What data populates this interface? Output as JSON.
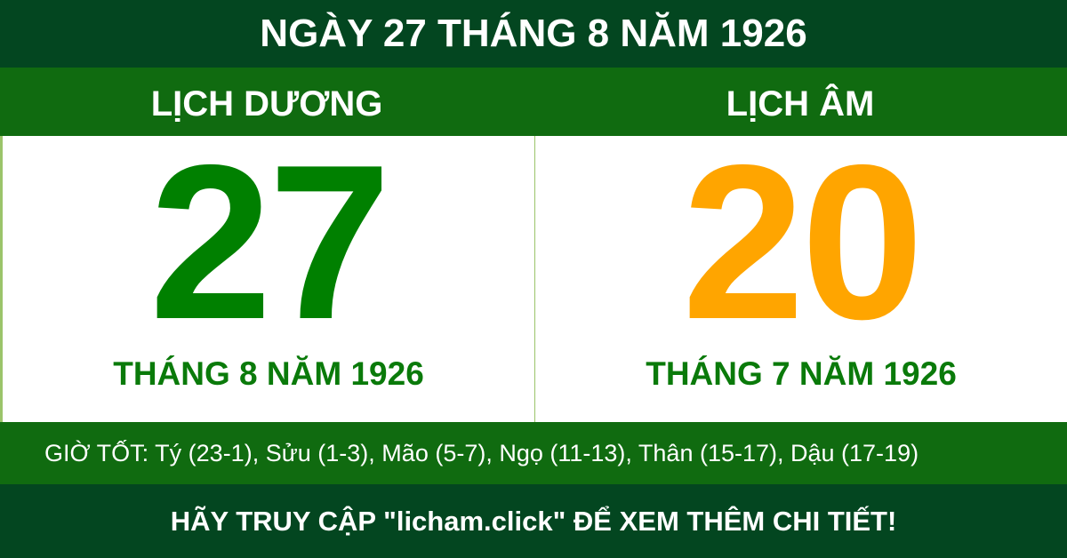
{
  "title": "NGÀY 27 THÁNG 8 NĂM 1926",
  "solar": {
    "heading": "LỊCH DƯƠNG",
    "day": "27",
    "month_year": "THÁNG 8 NĂM 1926",
    "color": "#008000"
  },
  "lunar": {
    "heading": "LỊCH ÂM",
    "day": "20",
    "month_year": "THÁNG 7 NĂM 1926",
    "color": "#ffa500"
  },
  "good_hours": "GIỜ TỐT: Tý (23-1), Sửu (1-3), Mão (5-7), Ngọ (11-13), Thân (15-17), Dậu (17-19)",
  "footer": "HÃY TRUY CẬP \"licham.click\" ĐỂ XEM THÊM CHI TIẾT!",
  "colors": {
    "dark_green": "#034620",
    "mid_green": "#106b10"
  }
}
